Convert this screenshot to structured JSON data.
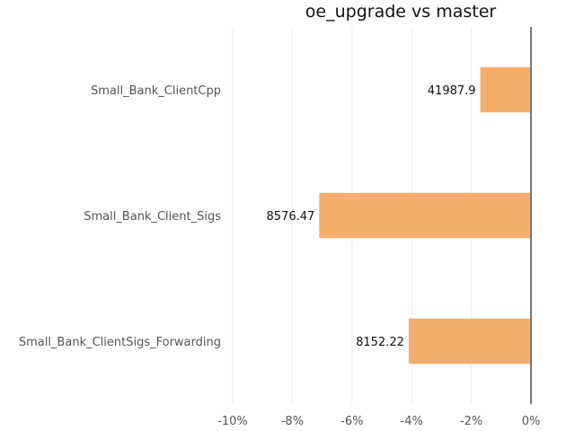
{
  "chart_data": {
    "type": "bar",
    "orientation": "horizontal",
    "title": "oe_upgrade vs master",
    "xlabel": "",
    "ylabel": "",
    "categories": [
      "Small_Bank_ClientCpp",
      "Small_Bank_Client_Sigs",
      "Small_Bank_ClientSigs_Forwarding"
    ],
    "values": [
      -1.7,
      -7.1,
      -4.1
    ],
    "data_labels": [
      "41987.9",
      "8576.47",
      "8152.22"
    ],
    "xlim": [
      -10,
      0
    ],
    "xticks": [
      -10,
      -8,
      -6,
      -4,
      -2,
      0
    ],
    "xtick_labels": [
      "-10%",
      "-8%",
      "-6%",
      "-4%",
      "-2%",
      "0%"
    ],
    "bar_color": "#f5ae6e",
    "grid": true,
    "legend": "none"
  }
}
